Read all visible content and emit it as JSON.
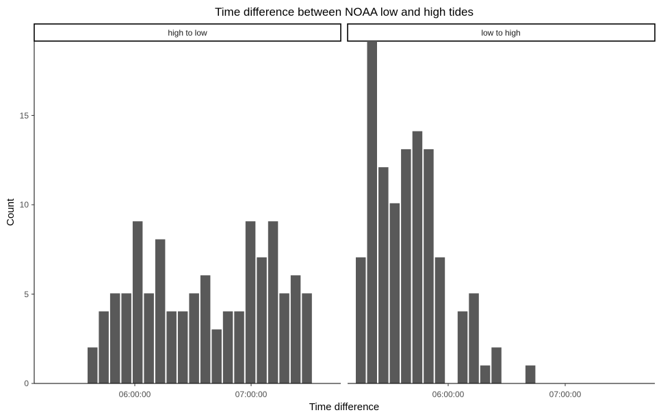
{
  "chart_data": {
    "type": "bar",
    "title": "Time difference between NOAA low and high tides",
    "xlabel": "Time difference",
    "ylabel": "Count",
    "ylim": [
      0,
      19
    ],
    "yticks": [
      0,
      5,
      10,
      15
    ],
    "xtick_labels": [
      "06:00:00",
      "07:00:00"
    ],
    "x_unit": "minutes",
    "xlim": [
      320,
      483
    ],
    "bin_width": 6,
    "grid": false,
    "bar_color": "#595959",
    "panels": [
      {
        "label": "high to low",
        "x": [
          351,
          357,
          363,
          369,
          375,
          381,
          387,
          393,
          399,
          405,
          411,
          417,
          423,
          429,
          435,
          441,
          447,
          453,
          459,
          465,
          471,
          477
        ],
        "values": [
          2,
          4,
          5,
          5,
          9,
          5,
          8,
          4,
          4,
          5,
          6,
          3,
          4,
          4,
          9,
          7,
          9,
          5,
          6,
          5,
          0,
          0
        ]
      },
      {
        "label": "low to high",
        "x": [
          327,
          333,
          339,
          345,
          351,
          357,
          363,
          369,
          375,
          381,
          387,
          393,
          399,
          405,
          411,
          417,
          423,
          429,
          435
        ],
        "values": [
          7,
          19,
          12,
          10,
          13,
          14,
          13,
          7,
          0,
          4,
          5,
          1,
          2,
          0,
          0,
          1,
          0,
          0,
          0
        ]
      }
    ]
  }
}
